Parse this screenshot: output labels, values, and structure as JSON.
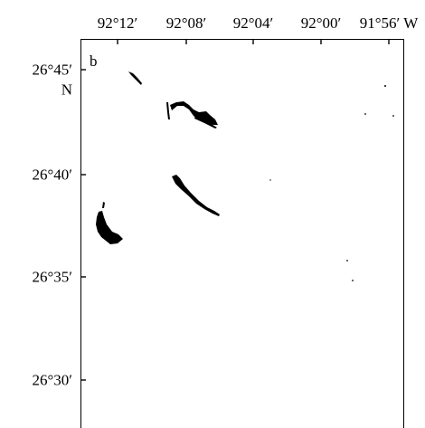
{
  "figure": {
    "panel_label": "b",
    "longitude_labels": [
      "92°12′",
      "92°08′",
      "92°04′",
      "92°00′",
      "91°56′ W"
    ],
    "latitude_labels": [
      "26°45′",
      "26°40′",
      "26°35′",
      "26°30′"
    ],
    "latitude_hemisphere": "N",
    "feature_color": "#000000",
    "background_color": "#ffffff"
  }
}
